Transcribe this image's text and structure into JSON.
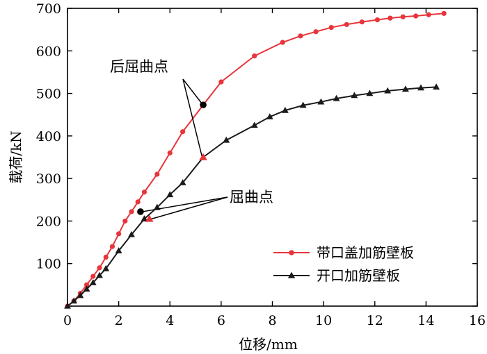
{
  "chart_data": {
    "type": "line",
    "title": "",
    "xlabel": "位移/mm",
    "ylabel": "载荷/kN",
    "xlim": [
      0,
      16
    ],
    "ylim": [
      0,
      700
    ],
    "xticks": [
      0,
      2,
      4,
      6,
      8,
      10,
      12,
      14,
      16
    ],
    "yticks": [
      0,
      100,
      200,
      300,
      400,
      500,
      600,
      700
    ],
    "grid": false,
    "legend_position": "bottom-right",
    "colors": {
      "red": "#e8343a",
      "black": "#1a1a1a"
    },
    "series": [
      {
        "name": "带口盖加筋壁板",
        "marker": "circle",
        "color": "#e8343a",
        "x": [
          0,
          0.25,
          0.5,
          0.75,
          1.0,
          1.25,
          1.5,
          1.75,
          2.0,
          2.25,
          2.5,
          2.75,
          3.0,
          3.5,
          4.0,
          4.5,
          5.3,
          6.0,
          7.3,
          8.4,
          9.1,
          9.7,
          10.3,
          10.9,
          11.5,
          12.1,
          12.6,
          13.1,
          13.6,
          14.1,
          14.7
        ],
        "y": [
          0,
          12,
          30,
          50,
          70,
          90,
          115,
          140,
          170,
          200,
          222,
          245,
          268,
          310,
          360,
          410,
          473,
          527,
          588,
          620,
          635,
          645,
          655,
          662,
          668,
          673,
          677,
          680,
          682,
          685,
          688
        ]
      },
      {
        "name": "开口加筋壁板",
        "marker": "triangle",
        "color": "#1a1a1a",
        "x": [
          0,
          0.25,
          0.5,
          0.75,
          1.0,
          1.25,
          1.5,
          2.0,
          2.5,
          3.0,
          3.5,
          4.0,
          4.5,
          5.3,
          6.2,
          7.3,
          7.9,
          8.5,
          9.2,
          9.9,
          10.5,
          11.2,
          11.8,
          12.5,
          13.2,
          13.8,
          14.4
        ],
        "y": [
          0,
          12,
          25,
          40,
          55,
          72,
          88,
          130,
          168,
          205,
          232,
          262,
          290,
          350,
          390,
          425,
          445,
          460,
          472,
          480,
          488,
          495,
          500,
          506,
          510,
          513,
          515
        ]
      }
    ],
    "annotations": [
      {
        "text": "后屈曲点",
        "points": [
          {
            "series": "带口盖加筋壁板",
            "x": 5.3,
            "y": 473,
            "marker": "filled-black-circle"
          },
          {
            "series": "开口加筋壁板",
            "x": 5.3,
            "y": 350,
            "marker": "red-triangle"
          }
        ]
      },
      {
        "text": "屈曲点",
        "points": [
          {
            "series": "带口盖加筋壁板",
            "x": 2.85,
            "y": 222,
            "marker": "filled-black-circle"
          },
          {
            "series": "开口加筋壁板",
            "x": 3.2,
            "y": 205,
            "marker": "red-triangle"
          }
        ]
      }
    ]
  }
}
